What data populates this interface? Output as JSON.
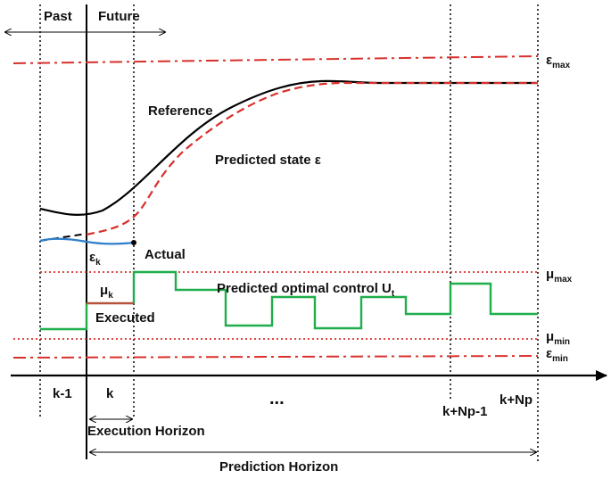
{
  "labels": {
    "past": "Past",
    "future": "Future",
    "reference": "Reference",
    "predicted_state": "Predicted state ε",
    "actual": "Actual",
    "eps_k": "ε",
    "eps_k_sub": "k",
    "mu_k": "μ",
    "mu_k_sub": "k",
    "predicted_control": "Predicted optimal control U",
    "predicted_control_sub": "t",
    "executed": "Executed",
    "eps_max": "ε",
    "eps_max_sub": "max",
    "mu_max": "μ",
    "mu_max_sub": "max",
    "mu_min": "μ",
    "mu_min_sub": "min",
    "eps_min": "ε",
    "eps_min_sub": "min",
    "tick_k_minus_1": "k-1",
    "tick_k": "k",
    "ellipsis": "...",
    "tick_k_np_minus_1": "k+Np-1",
    "tick_k_np": "k+Np",
    "execution_horizon": "Execution Horizon",
    "prediction_horizon": "Prediction Horizon"
  },
  "colors": {
    "reference": "#000000",
    "predicted_state": "#d9302c",
    "actual": "#2f7fc9",
    "control": "#1fae4b",
    "executed_segment": "#b5523b",
    "epsilon_bounds": "#d9302c",
    "mu_bounds": "#d9302c",
    "axis": "#000000"
  }
}
